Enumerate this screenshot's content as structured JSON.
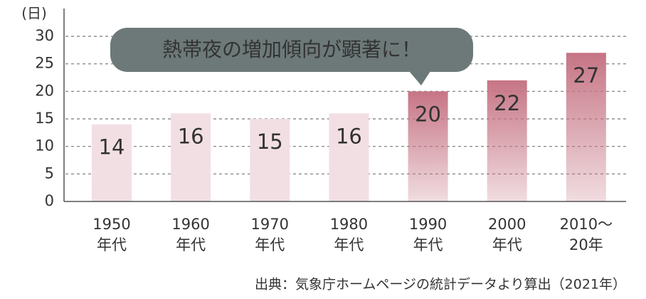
{
  "chart_data": {
    "type": "bar",
    "y_unit_label": "(日)",
    "annotation": "熱帯夜の増加傾向が顕著に！",
    "source": "出典：気象庁ホームページの統計データより算出（2021年）",
    "categories": [
      [
        "1950",
        "年代"
      ],
      [
        "1960",
        "年代"
      ],
      [
        "1970",
        "年代"
      ],
      [
        "1980",
        "年代"
      ],
      [
        "1990",
        "年代"
      ],
      [
        "2000",
        "年代"
      ],
      [
        "2010〜",
        "20年"
      ]
    ],
    "values": [
      14,
      16,
      15,
      16,
      20,
      22,
      27
    ],
    "colors": [
      "#f2dfe4",
      "#f2dfe4",
      "#f2dfe4",
      "#f2dfe4",
      "#c67585",
      "#c67585",
      "#c67585"
    ],
    "ylim": [
      0,
      30
    ],
    "yticks": [
      0,
      5,
      10,
      15,
      20,
      25,
      30
    ],
    "grid": true
  }
}
